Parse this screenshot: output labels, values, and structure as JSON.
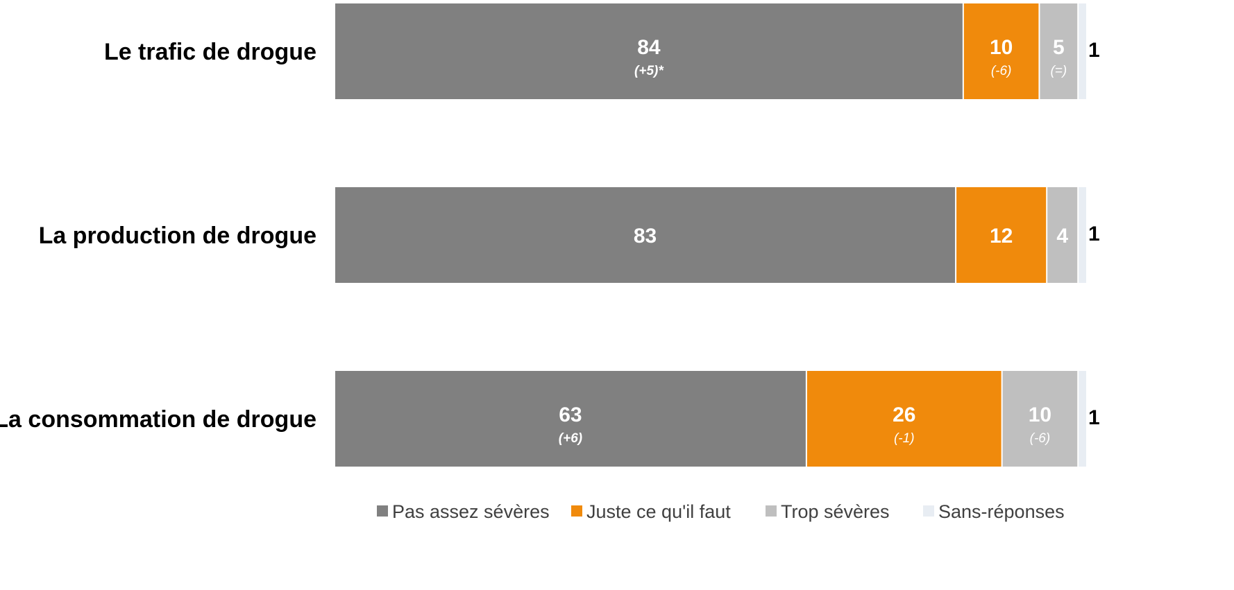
{
  "chart_data": {
    "type": "bar",
    "orientation": "horizontal-stacked-100",
    "categories": [
      "Le trafic de drogue",
      "La production de drogue",
      "La consommation de drogue"
    ],
    "series": [
      {
        "name": "Pas assez sévères",
        "color": "#808080",
        "label_color": "#ffffff",
        "values": [
          84,
          83,
          63
        ],
        "changes": [
          "(+5)*",
          "",
          "(+6)"
        ]
      },
      {
        "name": "Juste ce qu'il faut",
        "color": "#F08A0C",
        "label_color": "#ffffff",
        "values": [
          10,
          12,
          26
        ],
        "changes": [
          "(-6)",
          "",
          "(-1)"
        ]
      },
      {
        "name": "Trop sévères",
        "color": "#BFBFBF",
        "label_color": "#ffffff",
        "values": [
          5,
          4,
          10
        ],
        "changes": [
          "(=)",
          "",
          "(-6)"
        ]
      },
      {
        "name": "Sans-réponses",
        "color": "#E8EDF3",
        "label_color": "#000000",
        "values": [
          1,
          1,
          1
        ],
        "changes": [
          "",
          "",
          ""
        ]
      }
    ],
    "xlim": [
      0,
      100
    ],
    "legend": "bottom",
    "grid": false
  }
}
